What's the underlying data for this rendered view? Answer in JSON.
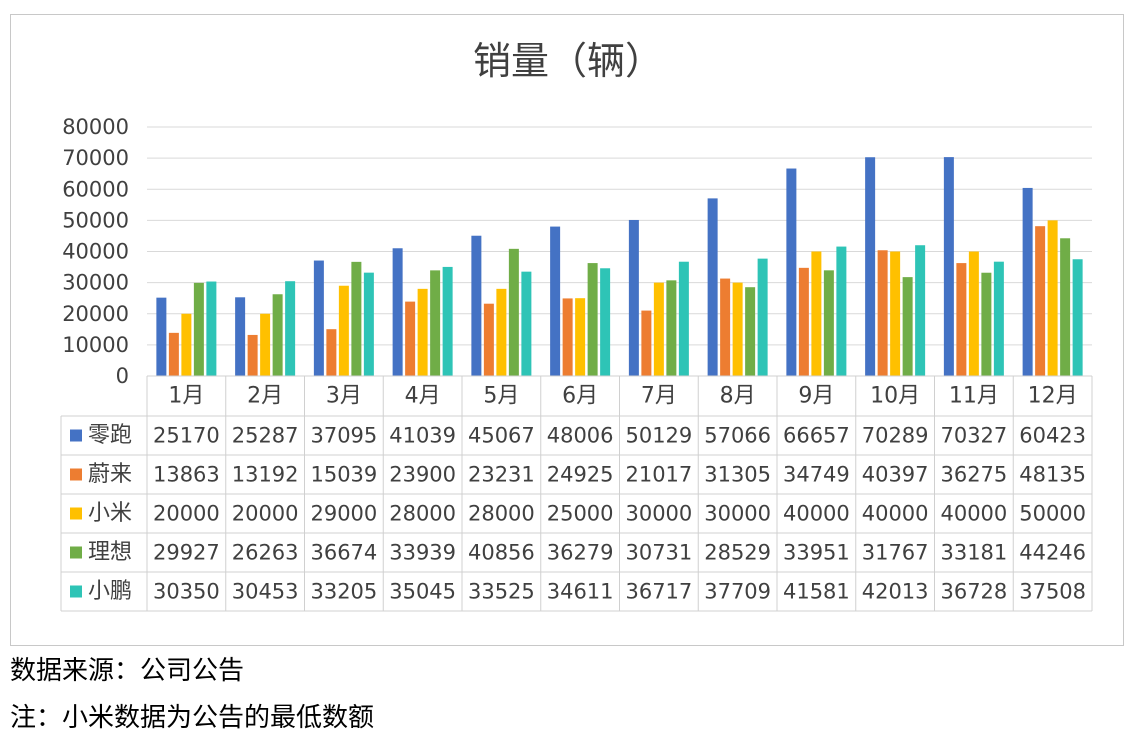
{
  "chart_data": {
    "type": "bar",
    "title": "销量（辆）",
    "categories": [
      "1月",
      "2月",
      "3月",
      "4月",
      "5月",
      "6月",
      "7月",
      "8月",
      "9月",
      "10月",
      "11月",
      "12月"
    ],
    "ylim": [
      0,
      80000
    ],
    "yticks": [
      "0",
      "10000",
      "20000",
      "30000",
      "40000",
      "50000",
      "60000",
      "70000",
      "80000"
    ],
    "grid": true,
    "legend": "data-table-left",
    "series": [
      {
        "name": "零跑",
        "color": "#4472C4",
        "values": [
          25170,
          25287,
          37095,
          41039,
          45067,
          48006,
          50129,
          57066,
          66657,
          70289,
          70327,
          60423
        ]
      },
      {
        "name": "蔚来",
        "color": "#ED7D31",
        "values": [
          13863,
          13192,
          15039,
          23900,
          23231,
          24925,
          21017,
          31305,
          34749,
          40397,
          36275,
          48135
        ]
      },
      {
        "name": "小米",
        "color": "#FFC000",
        "values": [
          20000,
          20000,
          29000,
          28000,
          28000,
          25000,
          30000,
          30000,
          40000,
          40000,
          40000,
          50000
        ]
      },
      {
        "name": "理想",
        "color": "#70AD47",
        "values": [
          29927,
          26263,
          36674,
          33939,
          40856,
          36279,
          30731,
          28529,
          33951,
          31767,
          33181,
          44246
        ]
      },
      {
        "name": "小鹏",
        "color": "#2EC4B6",
        "values": [
          30350,
          30453,
          33205,
          35045,
          33525,
          34611,
          36717,
          37709,
          41581,
          42013,
          36728,
          37508
        ]
      }
    ]
  },
  "notes": {
    "source": "数据来源：公司公告",
    "remark": "注：小米数据为公告的最低数额"
  }
}
